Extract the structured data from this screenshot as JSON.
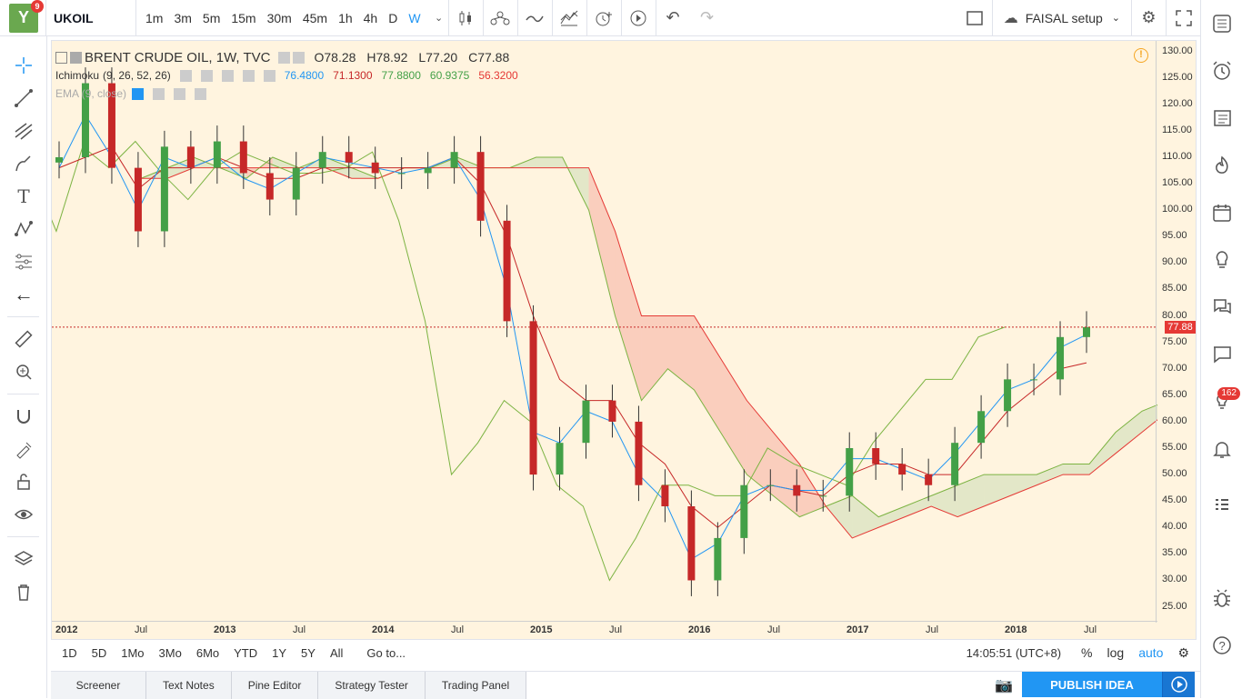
{
  "header": {
    "logo_letter": "Y",
    "logo_badge": "9",
    "symbol": "UKOIL",
    "intervals": [
      "1m",
      "3m",
      "5m",
      "15m",
      "30m",
      "45m",
      "1h",
      "4h",
      "D",
      "W"
    ],
    "active_interval": "W",
    "setup_name": "FAISAL setup"
  },
  "legend": {
    "title": "BRENT CRUDE OIL, 1W, TVC",
    "open": "O78.28",
    "high": "H78.92",
    "low": "L77.20",
    "close": "C77.88",
    "ichimoku_label": "Ichimoku",
    "ichimoku_params": "(9, 26, 52, 26)",
    "ichimoku_values": [
      {
        "value": "76.4800",
        "color": "#2196f3"
      },
      {
        "value": "71.1300",
        "color": "#c62828"
      },
      {
        "value": "77.8800",
        "color": "#43a047"
      },
      {
        "value": "60.9375",
        "color": "#43a047"
      },
      {
        "value": "56.3200",
        "color": "#e53935"
      }
    ],
    "ema_label": "EMA (9, close)"
  },
  "price_axis": {
    "ticks": [
      "130.00",
      "125.00",
      "120.00",
      "115.00",
      "110.00",
      "105.00",
      "100.00",
      "95.00",
      "90.00",
      "85.00",
      "80.00",
      "75.00",
      "70.00",
      "65.00",
      "60.00",
      "55.00",
      "50.00",
      "45.00",
      "40.00",
      "35.00",
      "30.00",
      "25.00"
    ],
    "last_price": "77.88"
  },
  "time_axis": {
    "labels": [
      "2012",
      "Jul",
      "2013",
      "Jul",
      "2014",
      "Jul",
      "2015",
      "Jul",
      "2016",
      "Jul",
      "2017",
      "Jul",
      "2018",
      "Jul"
    ]
  },
  "bottom": {
    "ranges": [
      "1D",
      "5D",
      "1Mo",
      "3Mo",
      "6Mo",
      "YTD",
      "1Y",
      "5Y",
      "All"
    ],
    "goto": "Go to...",
    "clock": "14:05:51 (UTC+8)",
    "percent": "%",
    "log": "log",
    "auto": "auto"
  },
  "panel_tabs": [
    "Screener",
    "Text Notes",
    "Pine Editor",
    "Strategy Tester",
    "Trading Panel"
  ],
  "publish_label": "PUBLISH IDEA",
  "right_badge": "162",
  "colors": {
    "bg": "#fff4df",
    "bull": "#43a047",
    "bear": "#c62828",
    "tenkan": "#2196f3",
    "kijun": "#c62828",
    "chikou": "#7cb342",
    "cloud_bull": "rgba(67,160,71,0.15)",
    "cloud_bear": "rgba(229,57,53,0.2)"
  },
  "chart_data": {
    "type": "candlestick",
    "title": "BRENT CRUDE OIL, 1W, TVC",
    "ylim": [
      22,
      132
    ],
    "x_range": [
      "2012-01",
      "2018-11"
    ],
    "series": [
      {
        "name": "Close",
        "x": [
          "2012-01",
          "2012-03",
          "2012-05",
          "2012-07",
          "2012-09",
          "2012-11",
          "2013-01",
          "2013-03",
          "2013-05",
          "2013-07",
          "2013-09",
          "2013-11",
          "2014-01",
          "2014-03",
          "2014-05",
          "2014-07",
          "2014-09",
          "2014-11",
          "2015-01",
          "2015-03",
          "2015-05",
          "2015-07",
          "2015-09",
          "2015-11",
          "2016-01",
          "2016-03",
          "2016-05",
          "2016-07",
          "2016-09",
          "2016-11",
          "2017-01",
          "2017-03",
          "2017-05",
          "2017-07",
          "2017-09",
          "2017-11",
          "2018-01",
          "2018-03",
          "2018-05",
          "2018-06"
        ],
        "values": [
          110,
          124,
          108,
          96,
          112,
          108,
          113,
          107,
          102,
          108,
          111,
          109,
          107,
          107,
          108,
          111,
          98,
          79,
          50,
          56,
          64,
          60,
          48,
          44,
          30,
          38,
          48,
          48,
          46,
          46,
          55,
          52,
          50,
          48,
          56,
          62,
          68,
          68,
          76,
          77.88
        ]
      }
    ],
    "ichimoku": {
      "tenkan": [
        108,
        118,
        110,
        100,
        110,
        108,
        110,
        106,
        104,
        107,
        110,
        109,
        108,
        107,
        108,
        110,
        102,
        85,
        58,
        56,
        62,
        60,
        50,
        45,
        34,
        37,
        46,
        48,
        47,
        47,
        53,
        53,
        51,
        49,
        54,
        60,
        66,
        68,
        74,
        76.48
      ],
      "kijun": [
        108,
        110,
        112,
        104,
        108,
        108,
        110,
        108,
        106,
        106,
        108,
        108,
        108,
        108,
        108,
        110,
        105,
        95,
        80,
        68,
        64,
        64,
        56,
        52,
        44,
        40,
        44,
        48,
        47,
        46,
        50,
        52,
        52,
        50,
        50,
        56,
        62,
        66,
        70,
        71.13
      ],
      "span_a": [
        106,
        108,
        110,
        108,
        106,
        110,
        108,
        110,
        108,
        106,
        108,
        108,
        110,
        108,
        108,
        110,
        110,
        100,
        80,
        64,
        70,
        66,
        58,
        50,
        46,
        42,
        44,
        46,
        42,
        44,
        46,
        48,
        50,
        50,
        50,
        52,
        52,
        58,
        62,
        64
      ],
      "span_b": [
        106,
        106,
        108,
        108,
        108,
        108,
        108,
        108,
        106,
        106,
        108,
        108,
        108,
        108,
        108,
        108,
        108,
        108,
        96,
        80,
        80,
        80,
        72,
        64,
        58,
        52,
        44,
        38,
        40,
        42,
        44,
        42,
        44,
        46,
        48,
        50,
        50,
        54,
        58,
        62
      ]
    }
  }
}
